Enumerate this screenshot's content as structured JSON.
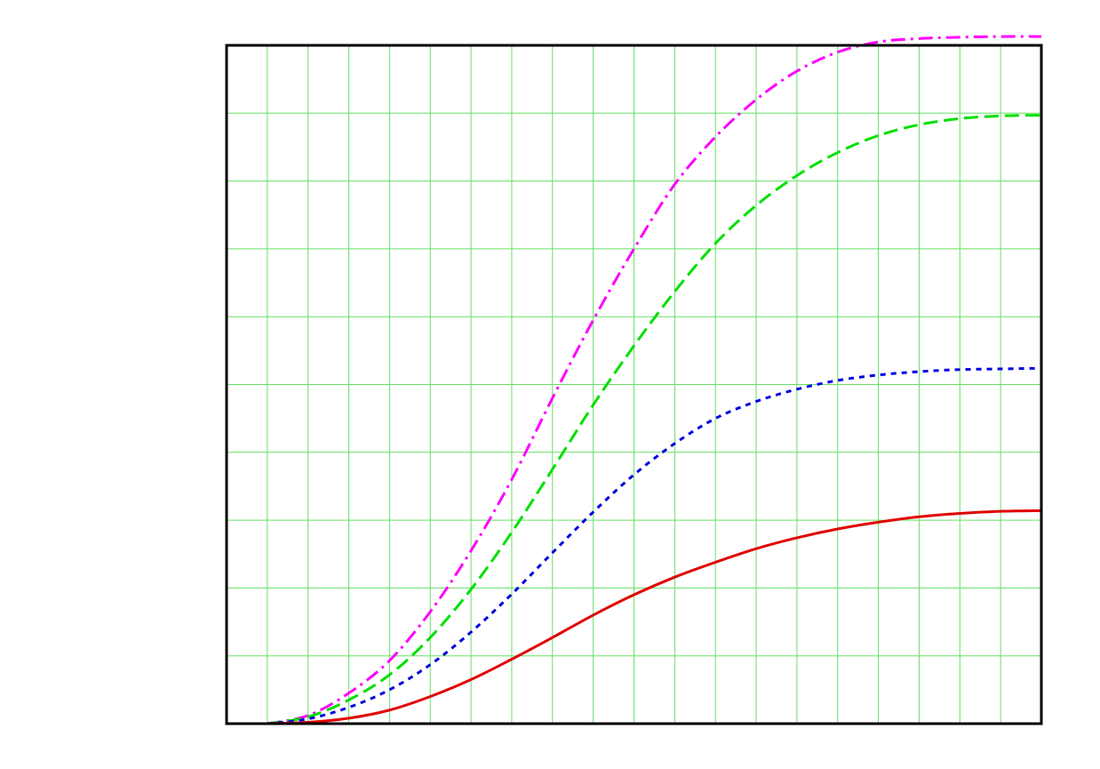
{
  "chart_data": {
    "type": "line",
    "title": "",
    "xlabel": "",
    "ylabel": "",
    "xlim": [
      0,
      20
    ],
    "ylim": [
      0,
      10
    ],
    "x_grid_step": 1,
    "y_grid_step": 1,
    "grid": true,
    "legend": "none",
    "colors": {
      "background": "#ffffff",
      "frame": "#000000",
      "grid": "#66e066"
    },
    "series": [
      {
        "color": "#ff00ff",
        "dash": "dashdot",
        "x": [
          1,
          2,
          3,
          4,
          5,
          6,
          7,
          8,
          9,
          10,
          11,
          12,
          13,
          14,
          15,
          16,
          17,
          18,
          19,
          20
        ],
        "y": [
          0.0,
          0.12,
          0.45,
          0.93,
          1.65,
          2.55,
          3.6,
          4.8,
          5.95,
          7.0,
          7.95,
          8.65,
          9.2,
          9.62,
          9.9,
          10.05,
          10.1,
          10.12,
          10.13,
          10.13
        ]
      },
      {
        "color": "#00e000",
        "dash": "dashed",
        "x": [
          1,
          2,
          3,
          4,
          5,
          6,
          7,
          8,
          9,
          10,
          11,
          12,
          13,
          14,
          15,
          16,
          17,
          18,
          19,
          20
        ],
        "y": [
          0.0,
          0.1,
          0.35,
          0.72,
          1.27,
          1.98,
          2.82,
          3.75,
          4.7,
          5.57,
          6.37,
          7.08,
          7.64,
          8.08,
          8.42,
          8.67,
          8.83,
          8.92,
          8.96,
          8.97
        ]
      },
      {
        "color": "#0000e0",
        "dash": "dotted",
        "x": [
          1,
          2,
          3,
          4,
          5,
          6,
          7,
          8,
          9,
          10,
          11,
          12,
          13,
          14,
          15,
          16,
          17,
          18,
          19,
          20
        ],
        "y": [
          0.0,
          0.07,
          0.24,
          0.5,
          0.87,
          1.35,
          1.91,
          2.52,
          3.12,
          3.67,
          4.13,
          4.5,
          4.75,
          4.93,
          5.06,
          5.14,
          5.19,
          5.22,
          5.23,
          5.24
        ]
      },
      {
        "color": "#e00000",
        "dash": "solid",
        "x": [
          1,
          2,
          3,
          4,
          5,
          6,
          7,
          8,
          9,
          10,
          11,
          12,
          13,
          14,
          15,
          16,
          17,
          18,
          19,
          20
        ],
        "y": [
          0.0,
          0.02,
          0.08,
          0.2,
          0.4,
          0.65,
          0.95,
          1.27,
          1.6,
          1.9,
          2.16,
          2.38,
          2.58,
          2.74,
          2.87,
          2.97,
          3.05,
          3.1,
          3.13,
          3.14
        ]
      }
    ]
  }
}
